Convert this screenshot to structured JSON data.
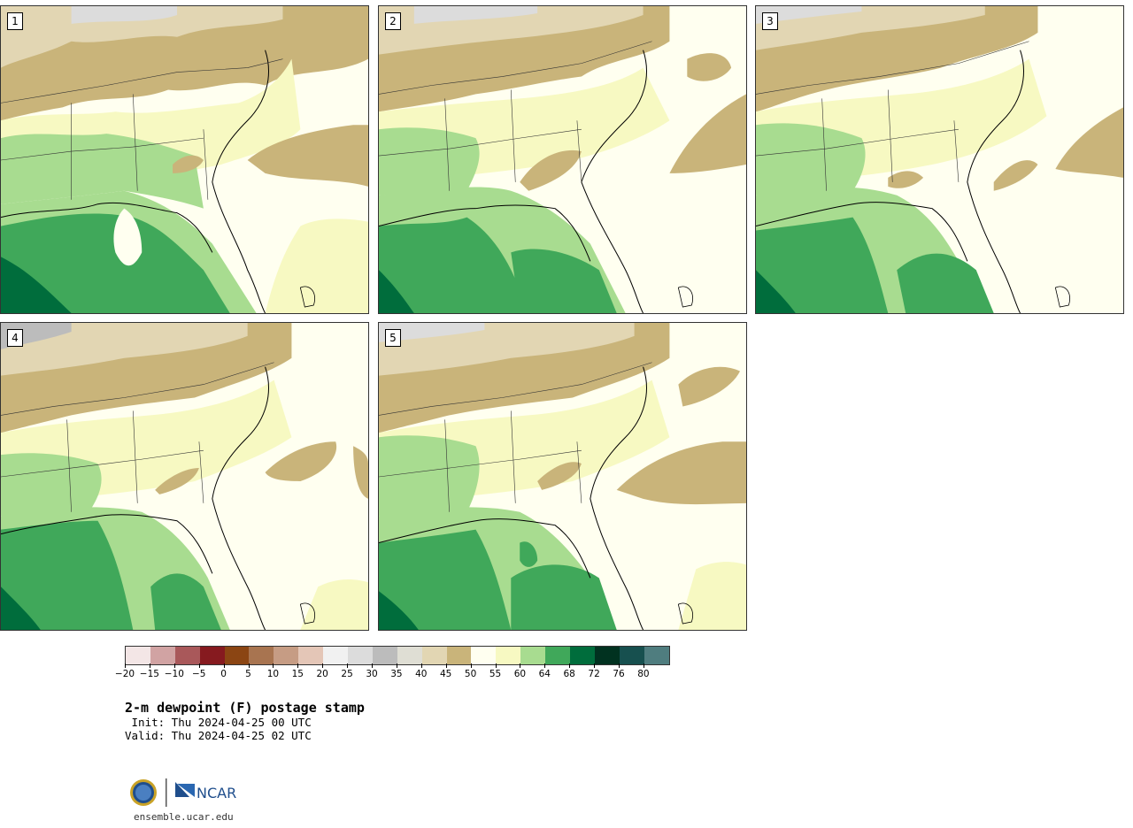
{
  "panels": [
    {
      "label": "1"
    },
    {
      "label": "2"
    },
    {
      "label": "3"
    },
    {
      "label": "4"
    },
    {
      "label": "5"
    }
  ],
  "colorbar": {
    "colors": [
      "#f3e6e6",
      "#d1a3a3",
      "#a9585a",
      "#861a1f",
      "#8b4513",
      "#a87450",
      "#c69c84",
      "#e4c6b7",
      "#f1f1f1",
      "#dcdcdc",
      "#bcbcbc",
      "#dfded4",
      "#e2d6b3",
      "#c9b47a",
      "#fffff0",
      "#f7f9c2",
      "#a8dc90",
      "#40a85a",
      "#006d3c",
      "#013220",
      "#17504f",
      "#4f7d7f"
    ],
    "labels": [
      "−20",
      "−15",
      "−10",
      "−5",
      "0",
      "5",
      "10",
      "15",
      "20",
      "25",
      "30",
      "35",
      "40",
      "45",
      "50",
      "55",
      "60",
      "64",
      "68",
      "72",
      "76",
      "80"
    ]
  },
  "map_colors": {
    "ocean_pale": "#fffff0",
    "pale_yellow": "#f7f9c2",
    "tan": "#c9b47a",
    "light_tan": "#e2d6b3",
    "gray": "#dcdcdc",
    "light_green": "#a8dc90",
    "green": "#40a85a",
    "dark_green": "#006d3c"
  },
  "title": "2-m dewpoint (F) postage stamp",
  "init": " Init: Thu 2024-04-25 00 UTC",
  "valid": "Valid: Thu 2024-04-25 02 UTC",
  "logo": {
    "left_icon": "nsf-logo-icon",
    "right_text": "NCAR"
  },
  "site": "ensemble.ucar.edu"
}
